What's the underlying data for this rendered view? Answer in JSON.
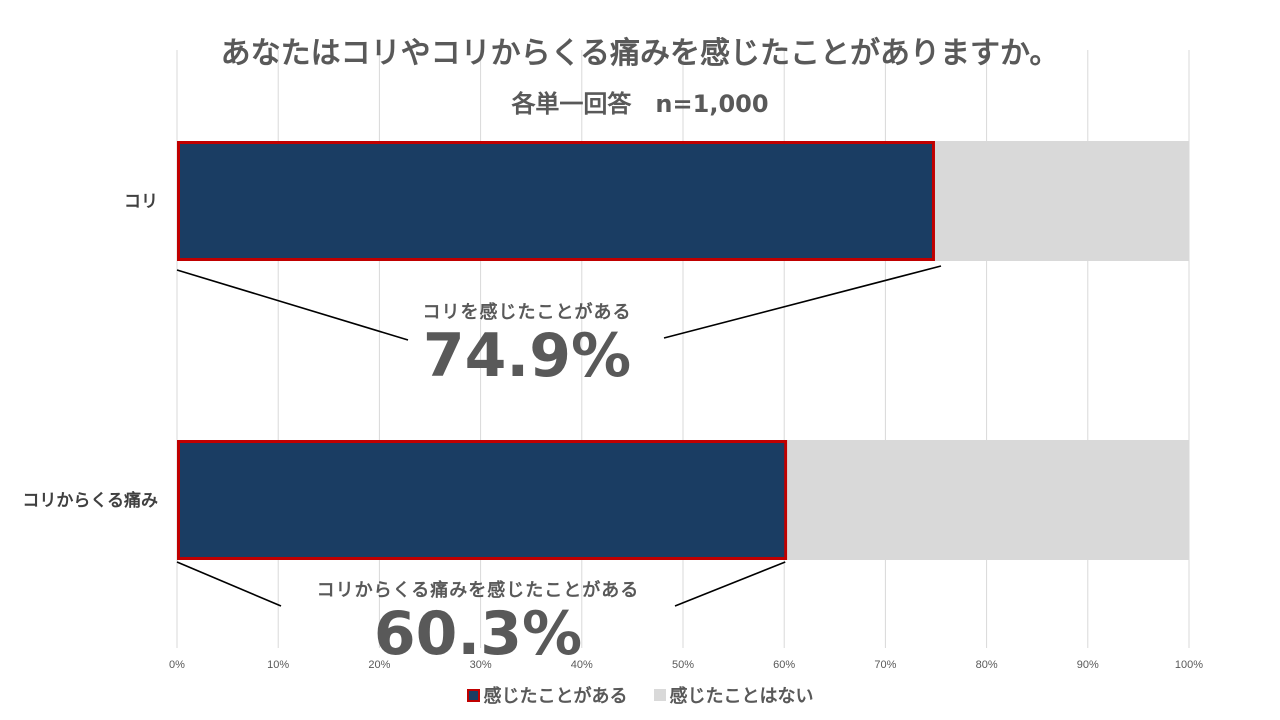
{
  "chart_data": {
    "type": "bar",
    "orientation": "horizontal",
    "stacked": true,
    "percent_stacked": true,
    "title": "あなたはコリやコリからくる痛みを感じたことがありますか。",
    "subtitle": "各単一回答　n=1,000",
    "categories": [
      "コリ",
      "コリからくる痛み"
    ],
    "series": [
      {
        "name": "感じたことがある",
        "values": [
          74.9,
          60.3
        ],
        "color": "#1a3d63",
        "border": "#c00000"
      },
      {
        "name": "感じたことはない",
        "values": [
          25.1,
          39.7
        ],
        "color": "#d9d9d9"
      }
    ],
    "xlim": [
      0,
      100
    ],
    "xticks": [
      "0%",
      "10%",
      "20%",
      "30%",
      "40%",
      "50%",
      "60%",
      "70%",
      "80%",
      "90%",
      "100%"
    ],
    "grid": true,
    "legend": "bottom",
    "annotations": [
      {
        "label": "コリを感じたことがある",
        "value": "74.9%"
      },
      {
        "label": "コリからくる痛みを感じたことがある",
        "value": "60.3%"
      }
    ]
  }
}
